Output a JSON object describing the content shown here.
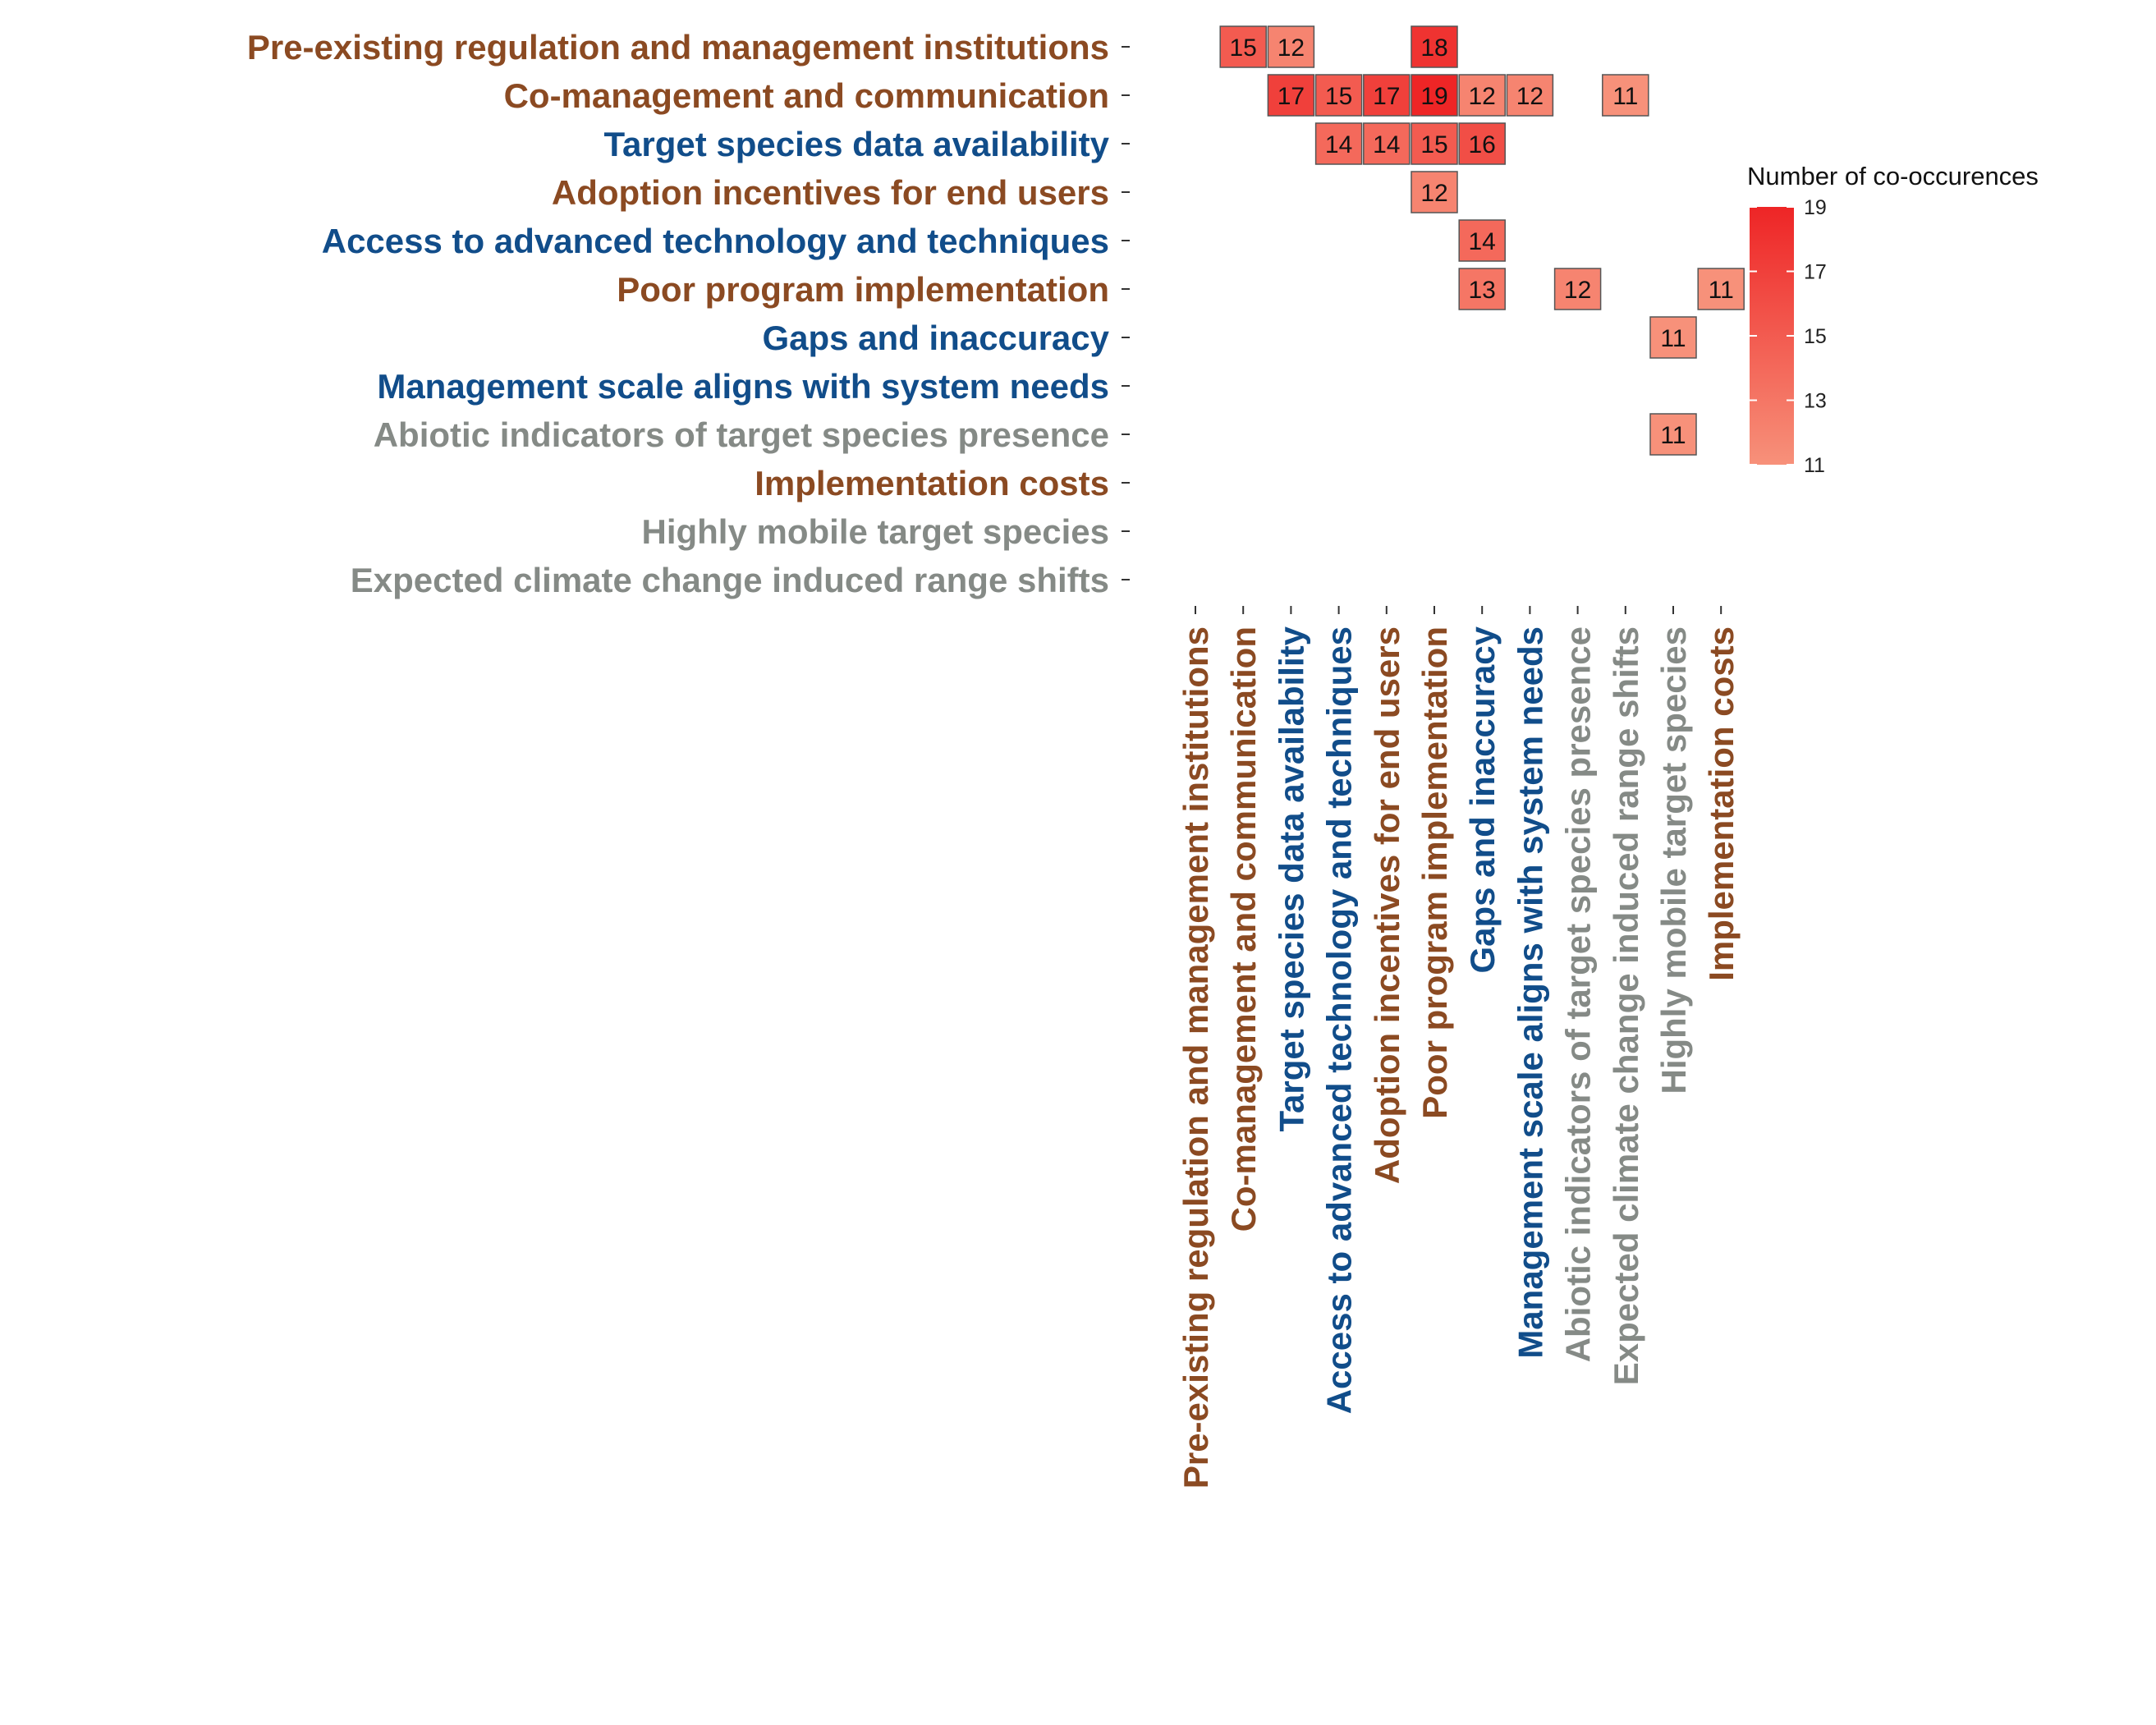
{
  "chart_data": {
    "type": "heatmap",
    "title": "",
    "xlabel": "",
    "ylabel": "",
    "categories": [
      "Pre-existing regulation and management institutions",
      "Co-management and communication",
      "Target species data availability",
      "Access to advanced technology and techniques",
      "Adoption incentives for end users",
      "Poor program implementation",
      "Gaps and inaccuracy",
      "Management scale aligns with system needs",
      "Abiotic indicators of target species presence",
      "Expected climate change induced range shifts",
      "Highly mobile target species",
      "Implementation costs"
    ],
    "y_categories": [
      "Pre-existing regulation and management institutions",
      "Co-management and communication",
      "Target species data availability",
      "Adoption incentives for end users",
      "Access to advanced technology and techniques",
      "Poor program implementation",
      "Gaps and inaccuracy",
      "Management scale aligns with system needs",
      "Abiotic indicators of target species presence",
      "Implementation costs",
      "Highly mobile target species",
      "Expected climate change induced range shifts"
    ],
    "category_groups": {
      "Pre-existing regulation and management institutions": "brown",
      "Co-management and communication": "brown",
      "Target species data availability": "blue",
      "Access to advanced technology and techniques": "blue",
      "Adoption incentives for end users": "brown",
      "Poor program implementation": "brown",
      "Gaps and inaccuracy": "blue",
      "Management scale aligns with system needs": "blue",
      "Abiotic indicators of target species presence": "gray",
      "Expected climate change induced range shifts": "gray",
      "Highly mobile target species": "gray",
      "Implementation costs": "brown"
    },
    "group_colors": {
      "brown": "#8b4a22",
      "blue": "#114d8a",
      "gray": "#858a86"
    },
    "cells": [
      {
        "y": "Pre-existing regulation and management institutions",
        "x": "Co-management and communication",
        "value": 15
      },
      {
        "y": "Pre-existing regulation and management institutions",
        "x": "Target species data availability",
        "value": 12
      },
      {
        "y": "Pre-existing regulation and management institutions",
        "x": "Poor program implementation",
        "value": 18
      },
      {
        "y": "Co-management and communication",
        "x": "Target species data availability",
        "value": 17
      },
      {
        "y": "Co-management and communication",
        "x": "Access to advanced technology and techniques",
        "value": 15
      },
      {
        "y": "Co-management and communication",
        "x": "Adoption incentives for end users",
        "value": 17
      },
      {
        "y": "Co-management and communication",
        "x": "Poor program implementation",
        "value": 19
      },
      {
        "y": "Co-management and communication",
        "x": "Gaps and inaccuracy",
        "value": 12
      },
      {
        "y": "Co-management and communication",
        "x": "Management scale aligns with system needs",
        "value": 12
      },
      {
        "y": "Co-management and communication",
        "x": "Expected climate change induced range shifts",
        "value": 11
      },
      {
        "y": "Target species data availability",
        "x": "Access to advanced technology and techniques",
        "value": 14
      },
      {
        "y": "Target species data availability",
        "x": "Adoption incentives for end users",
        "value": 14
      },
      {
        "y": "Target species data availability",
        "x": "Poor program implementation",
        "value": 15
      },
      {
        "y": "Target species data availability",
        "x": "Gaps and inaccuracy",
        "value": 16
      },
      {
        "y": "Adoption incentives for end users",
        "x": "Poor program implementation",
        "value": 12
      },
      {
        "y": "Access to advanced technology and techniques",
        "x": "Gaps and inaccuracy",
        "value": 14
      },
      {
        "y": "Poor program implementation",
        "x": "Gaps and inaccuracy",
        "value": 13
      },
      {
        "y": "Poor program implementation",
        "x": "Abiotic indicators of target species presence",
        "value": 12
      },
      {
        "y": "Poor program implementation",
        "x": "Implementation costs",
        "value": 11
      },
      {
        "y": "Gaps and inaccuracy",
        "x": "Highly mobile target species",
        "value": 11
      },
      {
        "y": "Abiotic indicators of target species presence",
        "x": "Highly mobile target species",
        "value": 11
      }
    ],
    "color_scale": {
      "min": 11,
      "max": 19,
      "low_color": "#f7917a",
      "high_color": "#ee2526"
    },
    "legend": {
      "title": "Number of co-occurences",
      "ticks": [
        19,
        17,
        15,
        13,
        11
      ],
      "placement": "right"
    },
    "grid": false
  }
}
